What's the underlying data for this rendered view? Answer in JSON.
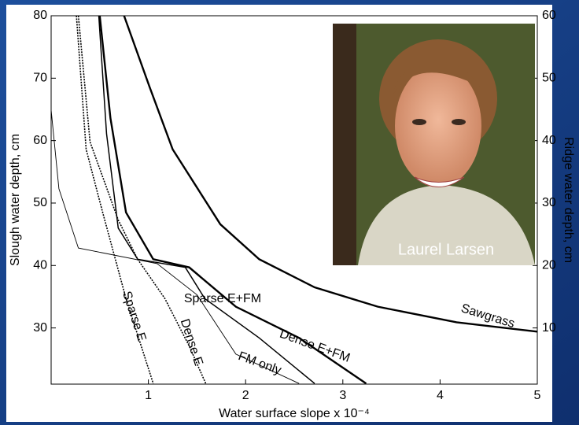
{
  "chart_data": {
    "type": "line",
    "x_label": "Water surface slope x 10⁻⁴",
    "y_label": "Slough water depth, cm",
    "y2_label": "Ridge water depth, cm",
    "xlim": [
      0,
      5
    ],
    "xticks": [
      1,
      2,
      3,
      4,
      5
    ],
    "ylim": [
      21,
      80
    ],
    "yticks": [
      30,
      40,
      50,
      60,
      70,
      80
    ],
    "y2lim": [
      1,
      60
    ],
    "y2ticks": [
      10,
      20,
      30,
      40,
      50,
      60
    ],
    "series": [
      {
        "name": "Sawgrass",
        "color": "#000000",
        "style": "bold",
        "axis": "y2",
        "x": [
          0.75,
          1.01,
          1.25,
          1.74,
          2.14,
          2.71,
          3.36,
          4.17,
          5
        ],
        "values": [
          60,
          48.7,
          38.6,
          26.6,
          21,
          16.5,
          13.4,
          10.9,
          9.4
        ]
      },
      {
        "name": "Dense E+FM",
        "color": "#000000",
        "style": "bold",
        "x": [
          0.5,
          0.61,
          0.77,
          1.05,
          1.42,
          1.9,
          2.55,
          3.24
        ],
        "values": [
          80,
          63.6,
          48.5,
          41,
          39.7,
          33.4,
          28.4,
          21.1
        ]
      },
      {
        "name": "Sparse E+FM",
        "color": "#000000",
        "style": "solid",
        "x": [
          0.49,
          0.57,
          0.69,
          0.89,
          1.38,
          1.58,
          2.14,
          2.71
        ],
        "values": [
          80,
          61.1,
          46,
          41,
          39.7,
          34.7,
          28.4,
          21.1
        ]
      },
      {
        "name": "FM only",
        "color": "#000000",
        "style": "thin",
        "x": [
          0,
          0.08,
          0.28,
          1.09,
          1.5,
          1.9,
          2.55
        ],
        "values": [
          64.9,
          52.3,
          42.8,
          40.3,
          35.3,
          25.8,
          21.1
        ]
      },
      {
        "name": "Sparse E",
        "color": "#000000",
        "style": "dotted",
        "x": [
          0.26,
          0.36,
          0.53,
          0.77,
          1.05
        ],
        "values": [
          80,
          58.6,
          48.5,
          34.7,
          21.1
        ]
      },
      {
        "name": "Dense E",
        "color": "#000000",
        "style": "dotted",
        "x": [
          0.28,
          0.4,
          0.69,
          0.89,
          1.17,
          1.42,
          1.59
        ],
        "values": [
          80,
          59.8,
          47.3,
          41,
          34.7,
          27.1,
          21.1
        ]
      }
    ]
  },
  "photo": {
    "caption": "Laurel Larsen"
  }
}
